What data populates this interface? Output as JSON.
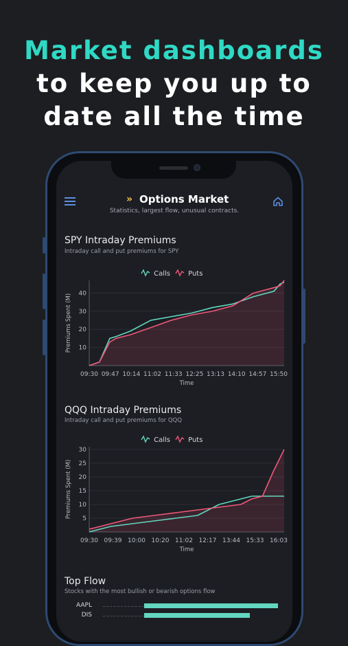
{
  "headline": {
    "line1": "Market dashboards",
    "line2": "to keep you up to",
    "line3": "date all the time"
  },
  "header": {
    "title": "Options Market",
    "subtitle": "Statistics, largest flow, unusual contracts.",
    "menu_icon": "hamburger-menu-icon",
    "home_icon": "home-icon"
  },
  "colors": {
    "accent": "#2fd9c5",
    "calls": "#63d6bf",
    "puts": "#f0587a",
    "chevron": "#f0c24a"
  },
  "spy": {
    "title": "SPY Intraday Premiums",
    "subtitle": "Intraday call and put premiums for SPY"
  },
  "qqq": {
    "title": "QQQ Intraday Premiums",
    "subtitle": "Intraday call and put premiums for QQQ"
  },
  "topflow": {
    "title": "Top Flow",
    "subtitle": "Stocks with the most bullish or bearish options flow",
    "rows": [
      {
        "ticker": "AAPL",
        "value": 0.95
      },
      {
        "ticker": "DIS",
        "value": 0.75
      }
    ]
  },
  "chart_data": [
    {
      "type": "line",
      "xlabel": "Time",
      "ylabel": "Premiums Spent (M)",
      "ylim": [
        0,
        47
      ],
      "yticks": [
        10,
        20,
        30,
        40
      ],
      "ticks": [
        "09:30",
        "09:47",
        "10:14",
        "11:02",
        "11:33",
        "12:25",
        "13:13",
        "14:10",
        "14:57",
        "15:50"
      ],
      "legend": [
        "Calls",
        "Puts"
      ],
      "legend_position": "top",
      "x": [
        0,
        0.5,
        1,
        1.3,
        2,
        3,
        4,
        5,
        6,
        7,
        8,
        9,
        9.3,
        9.5
      ],
      "series": [
        {
          "name": "Calls",
          "values": [
            0,
            2,
            15,
            16,
            19,
            25,
            27,
            29,
            32,
            34,
            38,
            41,
            45,
            46
          ]
        },
        {
          "name": "Puts",
          "values": [
            0,
            2,
            13,
            15,
            17,
            21,
            25,
            28,
            30,
            33,
            40,
            43,
            44,
            47
          ]
        }
      ]
    },
    {
      "type": "line",
      "xlabel": "Time",
      "ylabel": "Premiums Spent (M)",
      "ylim": [
        0,
        31
      ],
      "yticks": [
        5,
        10,
        15,
        20,
        25,
        30
      ],
      "ticks": [
        "09:30",
        "09:39",
        "10:00",
        "10:20",
        "11:02",
        "12:17",
        "13:44",
        "15:33",
        "16:03"
      ],
      "legend": [
        "Calls",
        "Puts"
      ],
      "legend_position": "top",
      "x": [
        0,
        0.5,
        1,
        2,
        3,
        4,
        5,
        6,
        7,
        7.5,
        8,
        8.5,
        9
      ],
      "series": [
        {
          "name": "Calls",
          "values": [
            0,
            1,
            2,
            3,
            4,
            5,
            6,
            10,
            12,
            13,
            13,
            13,
            13
          ]
        },
        {
          "name": "Puts",
          "values": [
            1,
            2,
            3,
            5,
            6,
            7,
            8,
            9,
            10,
            12,
            13,
            22,
            30
          ]
        }
      ]
    }
  ]
}
